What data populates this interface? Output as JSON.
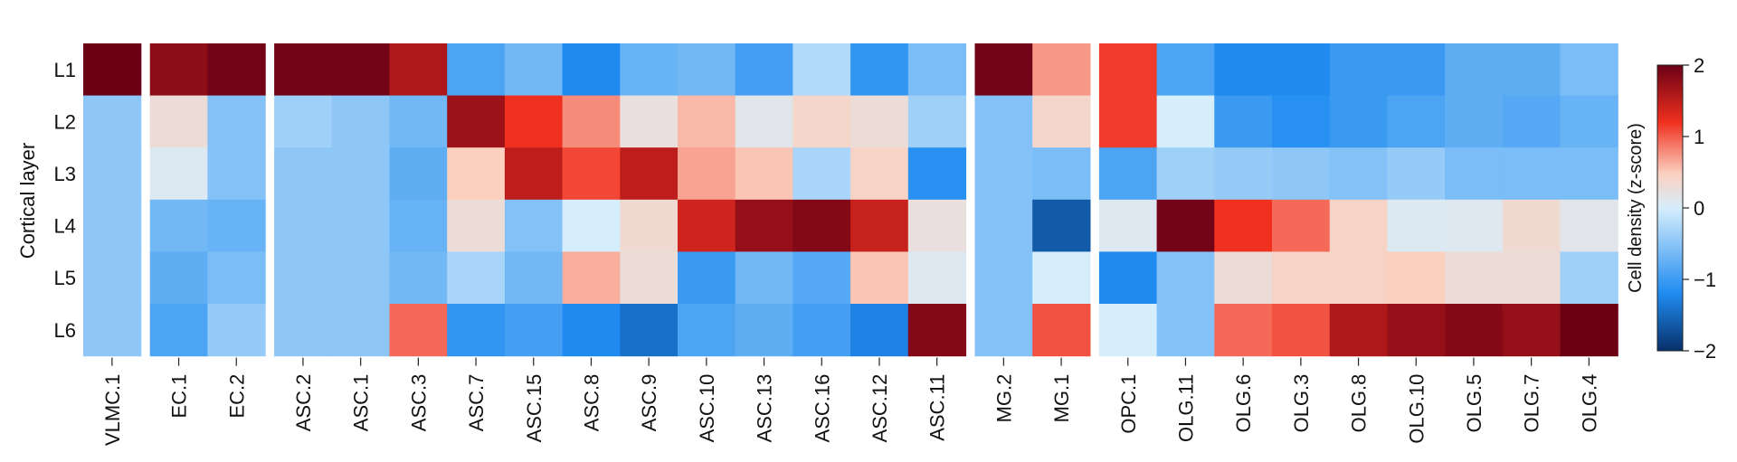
{
  "chart_data": {
    "type": "heatmap",
    "title": "",
    "ylabel": "Cortical layer",
    "colorbar": {
      "label": "Cell density (z-score)",
      "range": [
        -2,
        2
      ],
      "ticks": [
        "2",
        "1",
        "0",
        "−1",
        "−2"
      ],
      "colors": [
        "#08306b",
        "#1f8bf0",
        "#d6eefc",
        "#fbd0bf",
        "#f0301f",
        "#6b0015"
      ]
    },
    "rows": [
      "L1",
      "L2",
      "L3",
      "L4",
      "L5",
      "L6"
    ],
    "groups": [
      {
        "columns": [
          "VLMC.1"
        ],
        "values": [
          [
            2.0
          ],
          [
            -0.4
          ],
          [
            -0.4
          ],
          [
            -0.4
          ],
          [
            -0.4
          ],
          [
            -0.4
          ]
        ]
      },
      {
        "columns": [
          "EC.1",
          "EC.2"
        ],
        "values": [
          [
            1.8,
            1.95
          ],
          [
            0.3,
            -0.45
          ],
          [
            0.08,
            -0.45
          ],
          [
            -0.55,
            -0.6
          ],
          [
            -0.65,
            -0.5
          ],
          [
            -0.75,
            -0.35
          ]
        ]
      },
      {
        "columns": [
          "ASC.2",
          "ASC.1",
          "ASC.3",
          "ASC.7",
          "ASC.15",
          "ASC.8",
          "ASC.9",
          "ASC.10",
          "ASC.13",
          "ASC.16",
          "ASC.12",
          "ASC.11"
        ],
        "values": [
          [
            1.95,
            1.95,
            1.6,
            -0.75,
            -0.55,
            -1.0,
            -0.6,
            -0.55,
            -0.8,
            -0.2,
            -0.9,
            -0.5
          ],
          [
            -0.3,
            -0.4,
            -0.55,
            1.7,
            1.2,
            0.8,
            0.25,
            0.6,
            0.15,
            0.4,
            0.3,
            -0.3
          ],
          [
            -0.4,
            -0.4,
            -0.65,
            0.5,
            1.5,
            1.1,
            1.5,
            0.7,
            0.55,
            -0.25,
            0.45,
            -0.95
          ],
          [
            -0.4,
            -0.4,
            -0.6,
            0.3,
            -0.45,
            0.0,
            0.35,
            1.4,
            1.75,
            1.85,
            1.45,
            0.25
          ],
          [
            -0.4,
            -0.4,
            -0.55,
            -0.25,
            -0.55,
            0.65,
            0.3,
            -0.85,
            -0.55,
            -0.7,
            0.55,
            0.1
          ],
          [
            -0.4,
            -0.4,
            0.95,
            -0.9,
            -0.8,
            -1.0,
            -1.3,
            -0.75,
            -0.65,
            -0.8,
            -1.1,
            1.85
          ]
        ]
      },
      {
        "columns": [
          "MG.2",
          "MG.1"
        ],
        "values": [
          [
            1.95,
            0.75
          ],
          [
            -0.45,
            0.4
          ],
          [
            -0.45,
            -0.5
          ],
          [
            -0.45,
            -1.55
          ],
          [
            -0.45,
            0.0
          ],
          [
            -0.45,
            1.05
          ]
        ]
      },
      {
        "columns": [
          "OPC.1",
          "OLG.11",
          "OLG.6",
          "OLG.3",
          "OLG.8",
          "OLG.10",
          "OLG.5",
          "OLG.7",
          "OLG.4"
        ],
        "values": [
          [
            1.15,
            -0.75,
            -1.0,
            -1.0,
            -0.85,
            -0.85,
            -0.65,
            -0.65,
            -0.5
          ],
          [
            1.15,
            0.0,
            -0.85,
            -0.95,
            -0.85,
            -0.75,
            -0.65,
            -0.7,
            -0.6
          ],
          [
            -0.75,
            -0.3,
            -0.35,
            -0.4,
            -0.45,
            -0.35,
            -0.5,
            -0.5,
            -0.5
          ],
          [
            0.1,
            1.95,
            1.2,
            0.95,
            0.45,
            0.08,
            0.1,
            0.35,
            0.15
          ],
          [
            -1.0,
            -0.45,
            0.3,
            0.45,
            0.45,
            0.5,
            0.3,
            0.3,
            -0.3
          ],
          [
            0.0,
            -0.45,
            0.95,
            1.05,
            1.6,
            1.75,
            1.85,
            1.75,
            2.0
          ]
        ]
      }
    ]
  }
}
